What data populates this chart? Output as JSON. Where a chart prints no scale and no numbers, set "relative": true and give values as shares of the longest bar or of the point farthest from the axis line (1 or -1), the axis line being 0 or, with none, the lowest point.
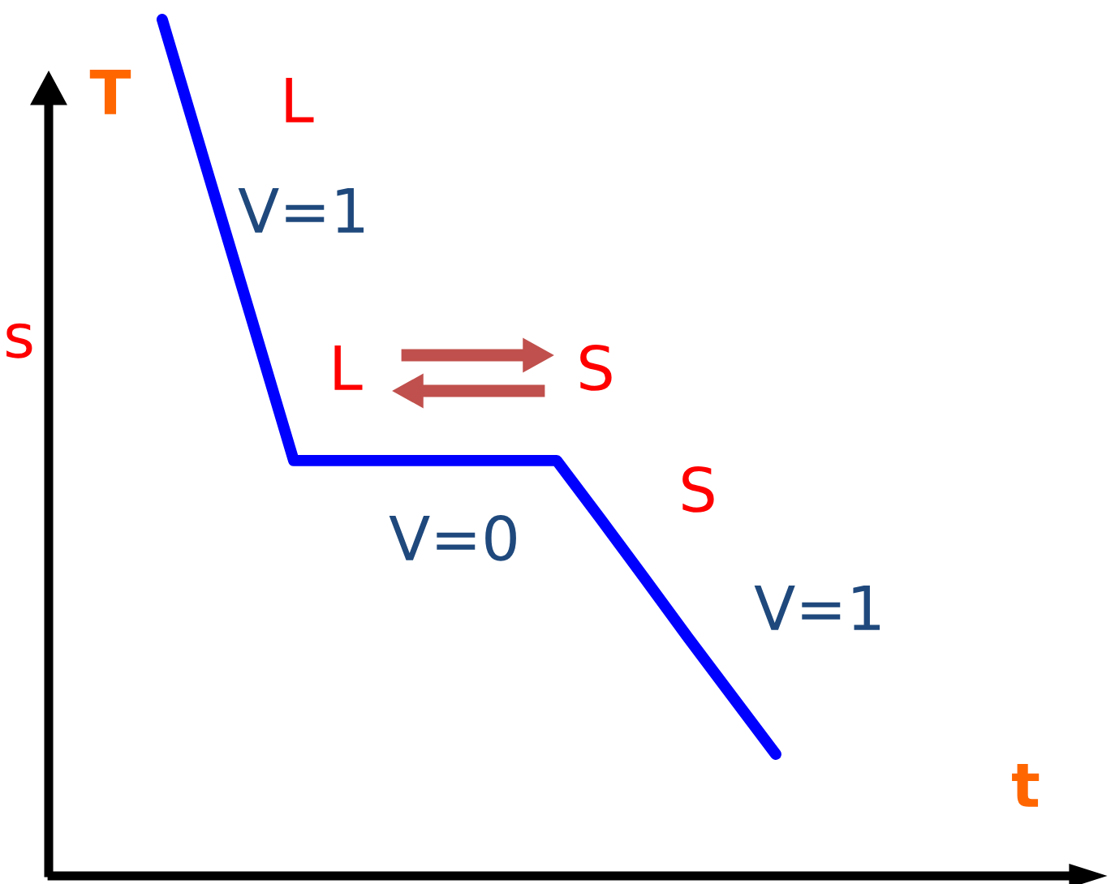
{
  "chart_data": {
    "type": "line",
    "relative": true,
    "xlabel": "t",
    "ylabel": "T",
    "categories": [
      null,
      null,
      null,
      null,
      null,
      null,
      null,
      null,
      null,
      null,
      null,
      null,
      null,
      null,
      null
    ],
    "legend": false,
    "marker": "none",
    "line_style": "solid",
    "series": [
      {
        "color": "#0000ff",
        "values": [
          1,
          0.828,
          0.657,
          0.485,
          0.485,
          0.485,
          0.485,
          0.485,
          0.485,
          0.485,
          0.417,
          0.348,
          0.278,
          0.21,
          0.142
        ]
      }
    ],
    "annotations": [
      "s",
      "L",
      "V=1",
      "L",
      "S",
      "V=0",
      "S",
      "V=1"
    ]
  }
}
